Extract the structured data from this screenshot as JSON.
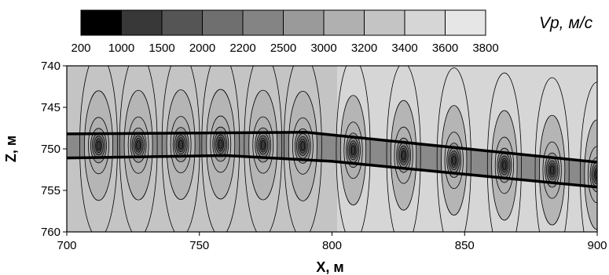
{
  "chart_data": {
    "type": "heatmap",
    "title": "",
    "xlabel": "X, м",
    "ylabel": "Z, м",
    "xlim": [
      700,
      900
    ],
    "ylim": [
      760,
      740
    ],
    "x_ticks": [
      "700",
      "750",
      "800",
      "850",
      "900"
    ],
    "y_ticks": [
      "740",
      "745",
      "750",
      "755",
      "760"
    ],
    "colorbar": {
      "label": "Vp, м/с",
      "levels": [
        "200",
        "1000",
        "1500",
        "2000",
        "2200",
        "2500",
        "3000",
        "3200",
        "3400",
        "3600",
        "3800"
      ],
      "colors": [
        "#000000",
        "#383838",
        "#555555",
        "#6f6f6f",
        "#848484",
        "#9a9a9a",
        "#b0b0b0",
        "#c4c4c4",
        "#d6d6d6",
        "#e6e6e6"
      ]
    },
    "layer_boundaries": [
      {
        "name": "upper",
        "points": [
          [
            700,
            748.2
          ],
          [
            790,
            748.0
          ],
          [
            900,
            751.6
          ]
        ]
      },
      {
        "name": "lower",
        "points": [
          [
            700,
            751.1
          ],
          [
            760,
            750.8
          ],
          [
            800,
            751.5
          ],
          [
            900,
            754.6
          ]
        ]
      }
    ],
    "anomaly_x": [
      712,
      727,
      743,
      758,
      774,
      789,
      808,
      827,
      846,
      865,
      883,
      900
    ],
    "background_colors": {
      "left": "#c4c4c4",
      "right": "#d6d6d6"
    }
  }
}
